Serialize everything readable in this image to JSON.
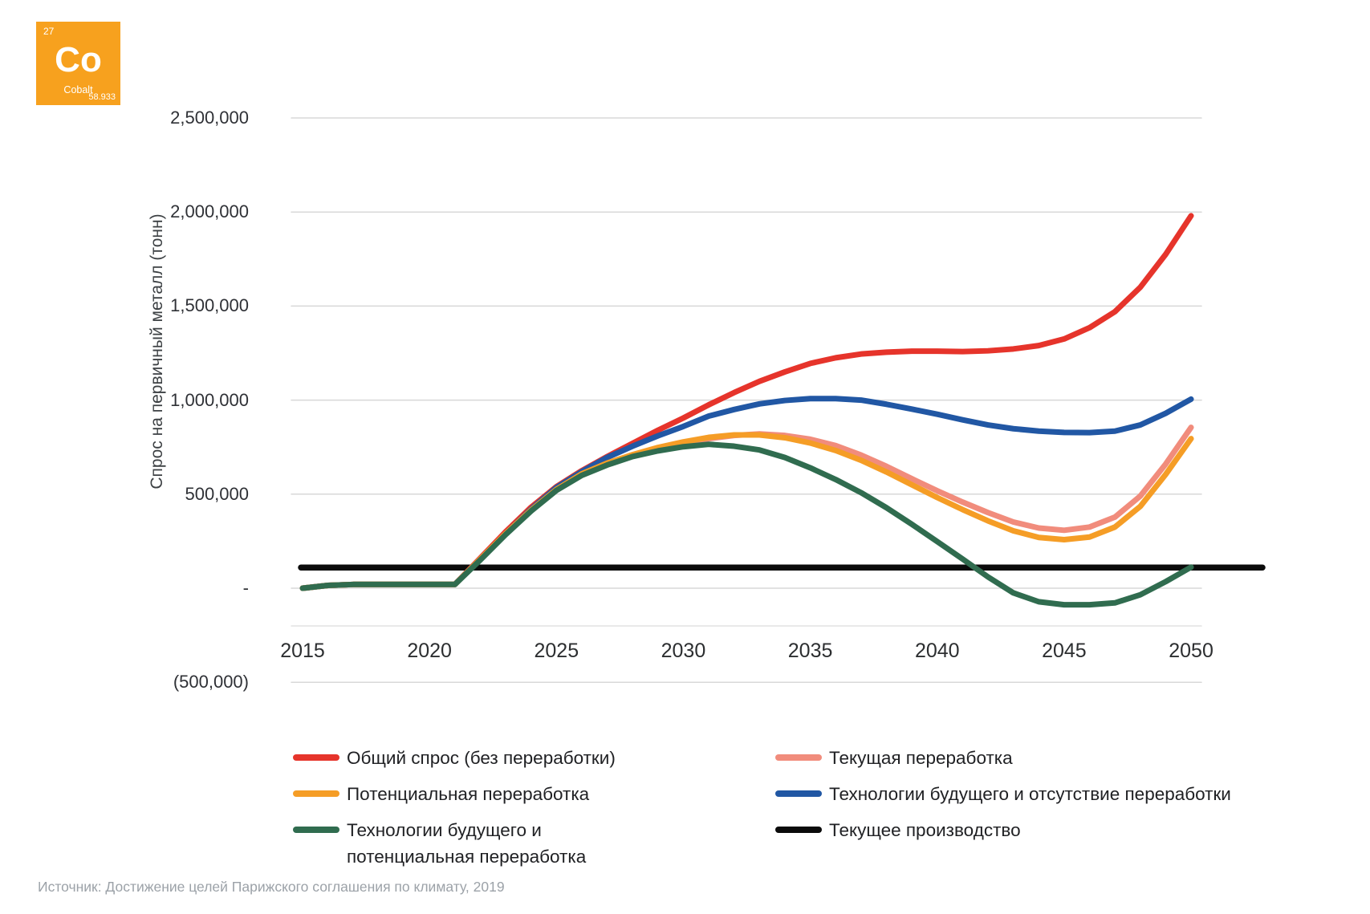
{
  "element_card": {
    "atomic_number": "27",
    "symbol": "Co",
    "name": "Cobalt",
    "atomic_mass": "58.933",
    "bg_color": "#F7A11E"
  },
  "chart": {
    "y_axis_title": "Спрос на первичный металл (тонн)",
    "y_ticks": [
      {
        "label": "2,500,000",
        "value": 2500000
      },
      {
        "label": "2,000,000",
        "value": 2000000
      },
      {
        "label": "1,500,000",
        "value": 1500000
      },
      {
        "label": "1,000,000",
        "value": 1000000
      },
      {
        "label": "500,000",
        "value": 500000
      },
      {
        "label": "-",
        "value": 0
      },
      {
        "label": "(500,000)",
        "value": -500000
      }
    ],
    "x_ticks": [
      {
        "label": "2015",
        "year": 2015
      },
      {
        "label": "2020",
        "year": 2020
      },
      {
        "label": "2025",
        "year": 2025
      },
      {
        "label": "2030",
        "year": 2030
      },
      {
        "label": "2035",
        "year": 2035
      },
      {
        "label": "2040",
        "year": 2040
      },
      {
        "label": "2045",
        "year": 2045
      },
      {
        "label": "2050",
        "year": 2050
      }
    ],
    "gridline_color": "#d8d8d8",
    "axis_line_color": "#e2e2e2"
  },
  "chart_data": {
    "type": "line",
    "title": "",
    "xlabel": "",
    "ylabel": "Спрос на первичный металл (тонн)",
    "ylim": [
      -500000,
      2500000
    ],
    "xlim": [
      2015,
      2050
    ],
    "grid": "horizontal",
    "legend_position": "bottom",
    "x": [
      2015,
      2016,
      2017,
      2018,
      2019,
      2020,
      2021,
      2022,
      2023,
      2024,
      2025,
      2026,
      2027,
      2028,
      2029,
      2030,
      2031,
      2032,
      2033,
      2034,
      2035,
      2036,
      2037,
      2038,
      2039,
      2040,
      2041,
      2042,
      2043,
      2044,
      2045,
      2046,
      2047,
      2048,
      2049,
      2050
    ],
    "series": [
      {
        "key": "total_demand",
        "name": "Общий спрос (без переработки)",
        "color": "#E6342B",
        "values": [
          0,
          15000,
          20000,
          20000,
          20000,
          20000,
          20000,
          160000,
          300000,
          430000,
          540000,
          625000,
          700000,
          770000,
          840000,
          905000,
          975000,
          1040000,
          1100000,
          1150000,
          1195000,
          1225000,
          1245000,
          1255000,
          1260000,
          1260000,
          1258000,
          1262000,
          1272000,
          1290000,
          1325000,
          1385000,
          1470000,
          1600000,
          1775000,
          1980000
        ]
      },
      {
        "key": "future_tech_no_recycling",
        "name": "Технологии будущего и отсутствие переработки",
        "color": "#2157A4",
        "values": [
          0,
          15000,
          20000,
          20000,
          20000,
          20000,
          20000,
          155000,
          290000,
          420000,
          535000,
          620000,
          695000,
          755000,
          810000,
          860000,
          915000,
          950000,
          980000,
          998000,
          1008000,
          1008000,
          1000000,
          978000,
          952000,
          925000,
          895000,
          868000,
          848000,
          835000,
          828000,
          827000,
          835000,
          868000,
          930000,
          1005000
        ]
      },
      {
        "key": "current_recycling",
        "name": "Текущая переработка",
        "color": "#F18C7C",
        "values": [
          0,
          15000,
          20000,
          20000,
          20000,
          20000,
          20000,
          155000,
          290000,
          415000,
          525000,
          605000,
          660000,
          705000,
          742000,
          772000,
          795000,
          812000,
          820000,
          812000,
          792000,
          758000,
          708000,
          648000,
          582000,
          518000,
          458000,
          402000,
          352000,
          320000,
          308000,
          325000,
          378000,
          490000,
          660000,
          855000
        ]
      },
      {
        "key": "potential_recycling",
        "name": "Потенциальная переработка",
        "color": "#F59D26",
        "values": [
          0,
          15000,
          20000,
          20000,
          20000,
          20000,
          20000,
          155000,
          290000,
          415000,
          525000,
          608000,
          665000,
          710000,
          748000,
          778000,
          802000,
          815000,
          815000,
          800000,
          772000,
          732000,
          680000,
          618000,
          550000,
          482000,
          418000,
          358000,
          305000,
          270000,
          258000,
          272000,
          325000,
          435000,
          605000,
          795000
        ]
      },
      {
        "key": "future_tech_potential_recycling",
        "name": "Технологии будущего и потенциальная переработка",
        "color": "#306C4F",
        "values": [
          0,
          15000,
          20000,
          20000,
          20000,
          20000,
          20000,
          150000,
          285000,
          410000,
          520000,
          600000,
          655000,
          700000,
          730000,
          752000,
          765000,
          755000,
          735000,
          695000,
          640000,
          578000,
          508000,
          428000,
          340000,
          248000,
          155000,
          60000,
          -25000,
          -72000,
          -88000,
          -88000,
          -78000,
          -35000,
          35000,
          112000
        ]
      },
      {
        "key": "current_production",
        "name": "Текущее производство",
        "color": "#0B0B0B",
        "values": [
          110000,
          110000,
          110000,
          110000,
          110000,
          110000,
          110000,
          110000,
          110000,
          110000,
          110000,
          110000,
          110000,
          110000,
          110000,
          110000,
          110000,
          110000,
          110000,
          110000,
          110000,
          110000,
          110000,
          110000,
          110000,
          110000,
          110000,
          110000,
          110000,
          110000,
          110000,
          110000,
          110000,
          110000,
          110000,
          110000
        ]
      }
    ]
  },
  "legend": {
    "columns": [
      [
        {
          "series_key": "total_demand",
          "label": "Общий спрос (без переработки)",
          "color": "#E6342B",
          "wrap": false
        },
        {
          "series_key": "potential_recycling",
          "label": "Потенциальная переработка",
          "color": "#F59D26",
          "wrap": false
        },
        {
          "series_key": "future_tech_potential_recycling",
          "label": "Технологии будущего и потенциальная переработка",
          "color": "#306C4F",
          "wrap": true
        }
      ],
      [
        {
          "series_key": "current_recycling",
          "label": "Текущая переработка",
          "color": "#F18C7C",
          "wrap": false
        },
        {
          "series_key": "future_tech_no_recycling",
          "label": "Технологии будущего и отсутствие переработки",
          "color": "#2157A4",
          "wrap": false
        },
        {
          "series_key": "current_production",
          "label": "Текущее производство",
          "color": "#0B0B0B",
          "wrap": false
        }
      ]
    ]
  },
  "source": "Источник: Достижение целей Парижского соглашения по климату, 2019"
}
